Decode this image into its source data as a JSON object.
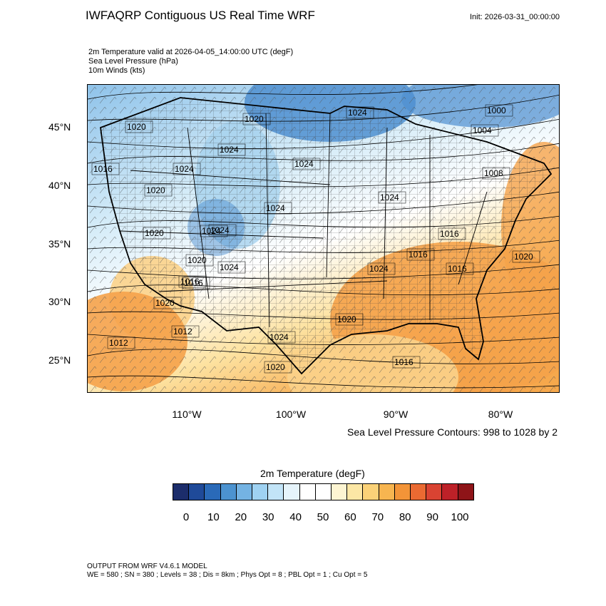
{
  "header": {
    "title": "IWFAQRP Contiguous US Real Time WRF",
    "init": "Init: 2026-03-31_00:00:00"
  },
  "fields": [
    "2m Temperature valid at 2026-04-05_14:00:00 UTC   (degF)",
    "Sea Level Pressure   (hPa)",
    "10m Winds   (kts)"
  ],
  "map": {
    "lat_labels": [
      "45°N",
      "40°N",
      "35°N",
      "30°N",
      "25°N"
    ],
    "lon_labels": [
      "110°W",
      "100°W",
      "90°W",
      "80°W"
    ],
    "isobar_labels": [
      "1020",
      "1020",
      "1024",
      "1024",
      "1000",
      "1004",
      "1008",
      "1016",
      "1024",
      "1024",
      "1020",
      "1024",
      "1024",
      "1024",
      "1016",
      "1020",
      "1016",
      "1020",
      "1024",
      "1024",
      "1020",
      "1016",
      "1016",
      "1020",
      "1012",
      "1012",
      "1016",
      "1024",
      "1020",
      "1016",
      "1020",
      "1024"
    ],
    "colors": {
      "cold": "#4f8fd0",
      "cool": "#a6d2ee",
      "neutral": "#ffffff",
      "warm": "#fbd28a",
      "hot": "#f5a24a"
    }
  },
  "contour_note": "Sea Level Pressure Contours: 998 to 1028 by 2",
  "colorbar": {
    "title": "2m Temperature  (degF)",
    "colors": [
      "#1c2d6b",
      "#1f4a99",
      "#2a6ab8",
      "#4c93d0",
      "#74b3e3",
      "#9fd2f2",
      "#c2e4f7",
      "#e6f4fb",
      "#ffffff",
      "#ffffff",
      "#fdf5d2",
      "#fce7a5",
      "#fbd278",
      "#f7b550",
      "#f39438",
      "#ea6a32",
      "#d94332",
      "#bd2128",
      "#8e1418"
    ],
    "labels": [
      "0",
      "10",
      "20",
      "30",
      "40",
      "50",
      "60",
      "70",
      "80",
      "90",
      "100"
    ]
  },
  "footer": [
    "OUTPUT FROM WRF V4.6.1 MODEL",
    "WE = 580 ; SN = 380 ; Levels = 38 ; Dis = 8km ; Phys Opt = 8 ; PBL Opt = 1 ; Cu Opt = 5"
  ]
}
